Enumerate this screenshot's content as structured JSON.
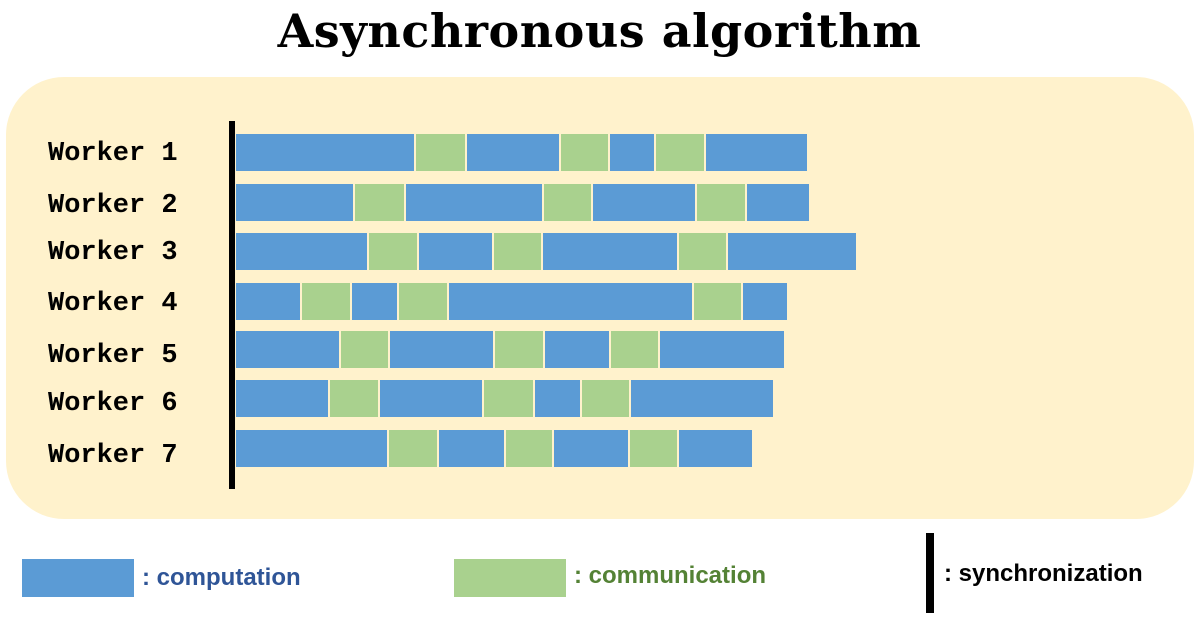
{
  "title": "Asynchronous algorithm",
  "colors": {
    "panel_background": "#fff2cc",
    "computation": "#5b9bd5",
    "communication": "#a9d18e",
    "computation_text": "#2f5597",
    "communication_text": "#548235",
    "synchronization": "#000000"
  },
  "workers": [
    {
      "label": "Worker 1",
      "segments": [
        [
          "comp",
          0,
          178
        ],
        [
          "comm",
          180,
          229
        ],
        [
          "comp",
          231,
          323
        ],
        [
          "comm",
          325,
          372
        ],
        [
          "comp",
          374,
          418
        ],
        [
          "comm",
          420,
          468
        ],
        [
          "comp",
          470,
          571
        ]
      ]
    },
    {
      "label": "Worker 2",
      "segments": [
        [
          "comp",
          0,
          117
        ],
        [
          "comm",
          119,
          168
        ],
        [
          "comp",
          170,
          306
        ],
        [
          "comm",
          308,
          355
        ],
        [
          "comp",
          357,
          459
        ],
        [
          "comm",
          461,
          509
        ],
        [
          "comp",
          511,
          573
        ]
      ]
    },
    {
      "label": "Worker 3",
      "segments": [
        [
          "comp",
          0,
          131
        ],
        [
          "comm",
          133,
          181
        ],
        [
          "comp",
          183,
          256
        ],
        [
          "comm",
          258,
          305
        ],
        [
          "comp",
          307,
          441
        ],
        [
          "comm",
          443,
          490
        ],
        [
          "comp",
          492,
          620
        ]
      ]
    },
    {
      "label": "Worker 4",
      "segments": [
        [
          "comp",
          0,
          64
        ],
        [
          "comm",
          66,
          114
        ],
        [
          "comp",
          116,
          161
        ],
        [
          "comm",
          163,
          211
        ],
        [
          "comp",
          213,
          456
        ],
        [
          "comm",
          458,
          505
        ],
        [
          "comp",
          507,
          551
        ]
      ]
    },
    {
      "label": "Worker 5",
      "segments": [
        [
          "comp",
          0,
          103
        ],
        [
          "comm",
          105,
          152
        ],
        [
          "comp",
          154,
          257
        ],
        [
          "comm",
          259,
          307
        ],
        [
          "comp",
          309,
          373
        ],
        [
          "comm",
          375,
          422
        ],
        [
          "comp",
          424,
          548
        ]
      ]
    },
    {
      "label": "Worker 6",
      "segments": [
        [
          "comp",
          0,
          92
        ],
        [
          "comm",
          94,
          142
        ],
        [
          "comp",
          144,
          246
        ],
        [
          "comm",
          248,
          297
        ],
        [
          "comp",
          299,
          344
        ],
        [
          "comm",
          346,
          393
        ],
        [
          "comp",
          395,
          537
        ]
      ]
    },
    {
      "label": "Worker 7",
      "segments": [
        [
          "comp",
          0,
          151
        ],
        [
          "comm",
          153,
          201
        ],
        [
          "comp",
          203,
          268
        ],
        [
          "comm",
          270,
          316
        ],
        [
          "comp",
          318,
          392
        ],
        [
          "comm",
          394,
          441
        ],
        [
          "comp",
          443,
          516
        ]
      ]
    }
  ],
  "legend": {
    "computation": ":  computation",
    "communication": ":  communication",
    "synchronization": ":  synchronization"
  }
}
